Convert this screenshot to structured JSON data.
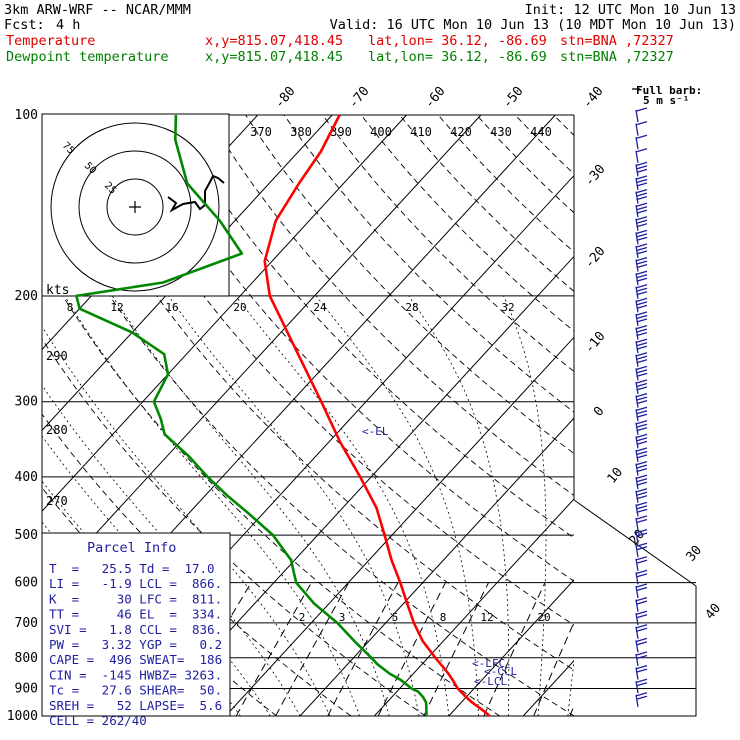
{
  "header": {
    "model": "3km ARW-WRF -- NCAR/MMM",
    "init": "Init: 12 UTC Mon 10 Jun 13",
    "fcst_label": "Fcst:",
    "fcst_value": "4 h",
    "valid": "Valid: 16 UTC Mon 10 Jun 13 (10 MDT Mon 10 Jun 13)",
    "line_temperature": {
      "label": "Temperature",
      "xy": "x,y=815.07,418.45",
      "latlon": "lat,lon= 36.12, -86.69",
      "stn": "stn=BNA ,72327"
    },
    "line_dewpoint": {
      "label": "Dewpoint temperature",
      "xy": "x,y=815.07,418.45",
      "latlon": "lat,lon= 36.12, -86.69",
      "stn": "stn=BNA ,72327"
    }
  },
  "barb_legend": {
    "title": "Full barb:",
    "value": "5 m s⁻¹"
  },
  "parcel_info": {
    "title": "Parcel Info",
    "rows": [
      "T  =   25.5 Td =  17.0",
      "LI =   -1.9 LCL =  866.",
      "K  =     30 LFC =  811.",
      "TT =     46 EL  =  334.",
      "SVI =   1.8 CCL =  836.",
      "PW =   3.32 YGP =   0.2",
      "CAPE =  496 SWEAT=  186",
      "CIN =  -145 HWBZ= 3263.",
      "Tc =   27.6 SHEAR=  50.",
      "SREH =   52 LAPSE=  5.6",
      "CELL = 262/40"
    ]
  },
  "level_markers": [
    "<-EL",
    "<-LFC",
    "<-CCL",
    "<-LCL"
  ],
  "colors": {
    "temperature": "#ff0000",
    "dewpoint": "#008800",
    "info": "#1e1ea0",
    "wind": "#1e1ea0"
  },
  "chart_data": {
    "type": "line",
    "chart_kind": "skew-T log-p sounding",
    "y_axis": {
      "quantity": "pressure (hPa)",
      "scale": "log",
      "range": [
        1000,
        100
      ],
      "ticks": [
        "100",
        "200",
        "300",
        "400",
        "500",
        "600",
        "700",
        "800",
        "900",
        "1000"
      ]
    },
    "x_axis": {
      "quantity": "temperature (°C), skewed",
      "tick_labels": [
        "-80",
        "-70",
        "-60",
        "-50",
        "-40",
        "-30",
        "-20",
        "-10",
        "0",
        "10",
        "20",
        "30",
        "40"
      ]
    },
    "theta_e_labels_top": [
      "370",
      "380",
      "390",
      "400",
      "410",
      "420",
      "430",
      "440"
    ],
    "theta_labels_left": [
      "290",
      "280",
      "270"
    ],
    "mixing_ratio_labels_200": [
      "8",
      "12",
      "16",
      "20",
      "24",
      "28",
      "32"
    ],
    "mixing_ratio_labels_low": [
      "2",
      "3",
      "5",
      "8",
      "12",
      "20"
    ],
    "series": [
      {
        "name": "Temperature",
        "color": "#ff0000",
        "points": [
          [
            1000,
            25.5
          ],
          [
            980,
            24.0
          ],
          [
            950,
            21.5
          ],
          [
            930,
            20.0
          ],
          [
            900,
            17.8
          ],
          [
            870,
            16.0
          ],
          [
            850,
            14.7
          ],
          [
            820,
            12.5
          ],
          [
            800,
            11.0
          ],
          [
            750,
            7.2
          ],
          [
            700,
            3.8
          ],
          [
            650,
            0.5
          ],
          [
            600,
            -3.0
          ],
          [
            550,
            -7.0
          ],
          [
            500,
            -11.0
          ],
          [
            450,
            -15.5
          ],
          [
            400,
            -21.5
          ],
          [
            350,
            -28.5
          ],
          [
            300,
            -36.0
          ],
          [
            250,
            -45.0
          ],
          [
            200,
            -56.0
          ],
          [
            175,
            -61.0
          ],
          [
            150,
            -64.5
          ],
          [
            130,
            -66.0
          ],
          [
            115,
            -67.0
          ],
          [
            100,
            -69.0
          ]
        ]
      },
      {
        "name": "Dewpoint temperature",
        "color": "#008800",
        "points": [
          [
            1000,
            17.0
          ],
          [
            970,
            16.0
          ],
          [
            950,
            15.3
          ],
          [
            930,
            14.2
          ],
          [
            910,
            12.8
          ],
          [
            900,
            11.6
          ],
          [
            870,
            9.0
          ],
          [
            850,
            6.8
          ],
          [
            820,
            4.0
          ],
          [
            800,
            2.4
          ],
          [
            750,
            -2.0
          ],
          [
            700,
            -6.5
          ],
          [
            650,
            -12.0
          ],
          [
            600,
            -17.0
          ],
          [
            550,
            -20.5
          ],
          [
            500,
            -26.0
          ],
          [
            460,
            -32.0
          ],
          [
            430,
            -37.0
          ],
          [
            400,
            -42.0
          ],
          [
            370,
            -47.0
          ],
          [
            340,
            -53.0
          ],
          [
            320,
            -55.5
          ],
          [
            300,
            -58.5
          ],
          [
            270,
            -60.0
          ],
          [
            250,
            -63.0
          ],
          [
            230,
            -70.0
          ],
          [
            210,
            -80.0
          ],
          [
            200,
            -82.0
          ],
          [
            190,
            -72.0
          ],
          [
            170,
            -65.0
          ],
          [
            150,
            -72.0
          ],
          [
            130,
            -81.0
          ],
          [
            110,
            -88.0
          ],
          [
            100,
            -91.0
          ]
        ]
      }
    ],
    "parcel_levels_hPa": {
      "EL": 334,
      "LFC": 811,
      "CCL": 836,
      "LCL": 866
    },
    "hodograph": {
      "ring_labels": [
        "75",
        "50",
        "25"
      ],
      "units_label": "kts"
    }
  }
}
